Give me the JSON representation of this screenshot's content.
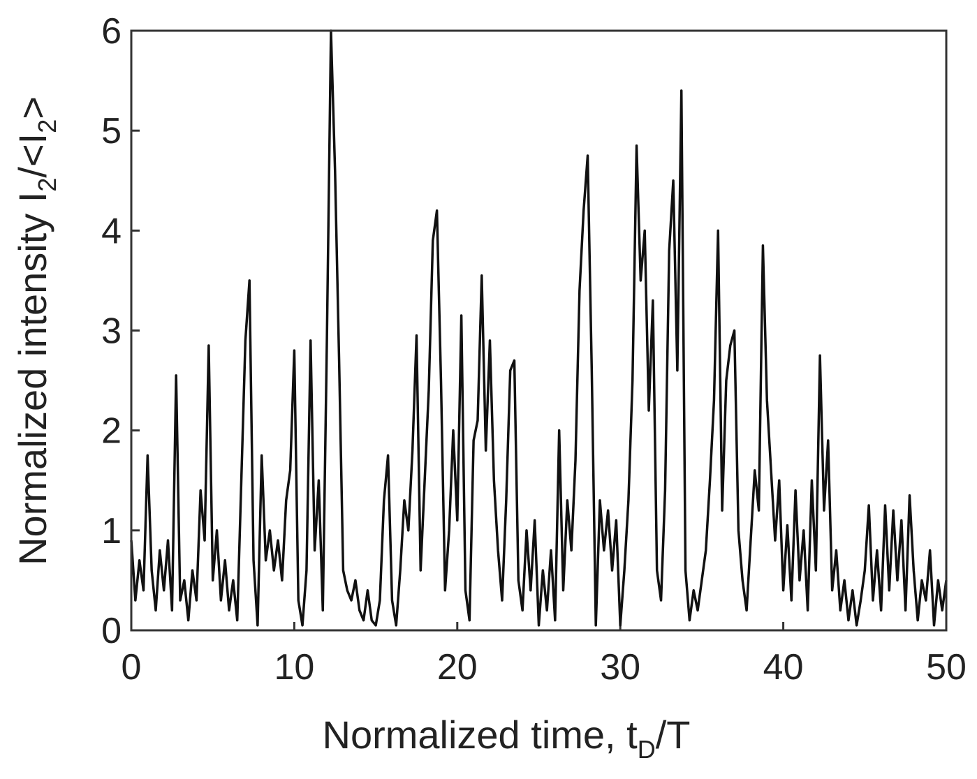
{
  "chart_data": {
    "type": "line",
    "xlabel": [
      "Normalized time, t",
      "D",
      "/T"
    ],
    "ylabel": [
      "Normalized intensity I",
      "2",
      "/<I",
      "2",
      ">"
    ],
    "xlim": [
      0,
      50
    ],
    "ylim": [
      0,
      6
    ],
    "xticks": [
      0,
      10,
      20,
      30,
      40,
      50
    ],
    "yticks": [
      0,
      1,
      2,
      3,
      4,
      5,
      6
    ],
    "grid": false,
    "series": [
      {
        "color": "#111111",
        "x": [
          0,
          0.25,
          0.5,
          0.75,
          1,
          1.25,
          1.5,
          1.75,
          2,
          2.25,
          2.5,
          2.75,
          3,
          3.25,
          3.5,
          3.75,
          4,
          4.25,
          4.5,
          4.75,
          5,
          5.25,
          5.5,
          5.75,
          6,
          6.25,
          6.5,
          6.75,
          7,
          7.25,
          7.5,
          7.75,
          8,
          8.25,
          8.5,
          8.75,
          9,
          9.25,
          9.5,
          9.75,
          10,
          10.25,
          10.5,
          10.75,
          11,
          11.25,
          11.5,
          11.75,
          12,
          12.25,
          12.5,
          12.75,
          13,
          13.25,
          13.5,
          13.75,
          14,
          14.25,
          14.5,
          14.75,
          15,
          15.25,
          15.5,
          15.75,
          16,
          16.25,
          16.5,
          16.75,
          17,
          17.25,
          17.5,
          17.75,
          18,
          18.25,
          18.5,
          18.75,
          19,
          19.25,
          19.5,
          19.75,
          20,
          20.25,
          20.5,
          20.75,
          21,
          21.25,
          21.5,
          21.75,
          22,
          22.25,
          22.5,
          22.75,
          23,
          23.25,
          23.5,
          23.75,
          24,
          24.25,
          24.5,
          24.75,
          25,
          25.25,
          25.5,
          25.75,
          26,
          26.25,
          26.5,
          26.75,
          27,
          27.25,
          27.5,
          27.75,
          28,
          28.25,
          28.5,
          28.75,
          29,
          29.25,
          29.5,
          29.75,
          30,
          30.25,
          30.5,
          30.75,
          31,
          31.25,
          31.5,
          31.75,
          32,
          32.25,
          32.5,
          32.75,
          33,
          33.25,
          33.5,
          33.75,
          34,
          34.25,
          34.5,
          34.75,
          35,
          35.25,
          35.5,
          35.75,
          36,
          36.25,
          36.5,
          36.75,
          37,
          37.25,
          37.5,
          37.75,
          38,
          38.25,
          38.5,
          38.75,
          39,
          39.25,
          39.5,
          39.75,
          40,
          40.25,
          40.5,
          40.75,
          41,
          41.25,
          41.5,
          41.75,
          42,
          42.25,
          42.5,
          42.75,
          43,
          43.25,
          43.5,
          43.75,
          44,
          44.25,
          44.5,
          44.75,
          45,
          45.25,
          45.5,
          45.75,
          46,
          46.25,
          46.5,
          46.75,
          47,
          47.25,
          47.5,
          47.75,
          48,
          48.25,
          48.5,
          48.75,
          49,
          49.25,
          49.5,
          49.75,
          50
        ],
        "values": [
          0.9,
          0.3,
          0.7,
          0.4,
          1.75,
          0.6,
          0.2,
          0.8,
          0.4,
          0.9,
          0.2,
          2.55,
          0.3,
          0.5,
          0.1,
          0.6,
          0.3,
          1.4,
          0.9,
          2.85,
          0.5,
          1.0,
          0.3,
          0.7,
          0.2,
          0.5,
          0.1,
          1.5,
          2.9,
          3.5,
          0.7,
          0.05,
          1.75,
          0.7,
          1.0,
          0.6,
          0.9,
          0.5,
          1.3,
          1.6,
          2.8,
          0.3,
          0.05,
          0.6,
          2.9,
          0.8,
          1.5,
          0.2,
          2.9,
          6.0,
          4.6,
          2.7,
          0.6,
          0.4,
          0.3,
          0.5,
          0.2,
          0.1,
          0.4,
          0.1,
          0.05,
          0.3,
          1.3,
          1.75,
          0.3,
          0.05,
          0.6,
          1.3,
          1.0,
          1.8,
          2.95,
          0.6,
          1.5,
          2.4,
          3.9,
          4.2,
          2.5,
          0.4,
          1.0,
          2.0,
          1.1,
          3.15,
          0.4,
          0.1,
          1.9,
          2.1,
          3.55,
          1.8,
          2.9,
          1.5,
          0.8,
          0.3,
          1.3,
          2.6,
          2.7,
          0.5,
          0.2,
          1.0,
          0.4,
          1.1,
          0.05,
          0.6,
          0.2,
          0.8,
          0.1,
          2.0,
          0.4,
          1.3,
          0.8,
          1.7,
          3.4,
          4.2,
          4.75,
          2.6,
          0.05,
          1.3,
          0.8,
          1.2,
          0.6,
          1.1,
          0.05,
          0.6,
          1.3,
          2.5,
          4.85,
          3.5,
          4.0,
          2.2,
          3.3,
          0.6,
          0.3,
          1.4,
          3.8,
          4.5,
          2.6,
          5.4,
          0.6,
          0.1,
          0.4,
          0.2,
          0.5,
          0.8,
          1.5,
          2.3,
          4.0,
          1.2,
          2.5,
          2.85,
          3.0,
          1.0,
          0.5,
          0.2,
          0.9,
          1.6,
          1.2,
          3.85,
          2.3,
          1.6,
          0.9,
          1.5,
          0.4,
          1.05,
          0.3,
          1.4,
          0.5,
          1.0,
          0.2,
          1.5,
          0.6,
          2.75,
          1.2,
          1.9,
          0.4,
          0.8,
          0.2,
          0.5,
          0.1,
          0.4,
          0.05,
          0.3,
          0.6,
          1.25,
          0.3,
          0.8,
          0.2,
          1.25,
          0.4,
          1.2,
          0.5,
          1.1,
          0.2,
          1.35,
          0.6,
          0.1,
          0.5,
          0.3,
          0.8,
          0.05,
          0.5,
          0.2,
          0.5
        ]
      }
    ]
  }
}
